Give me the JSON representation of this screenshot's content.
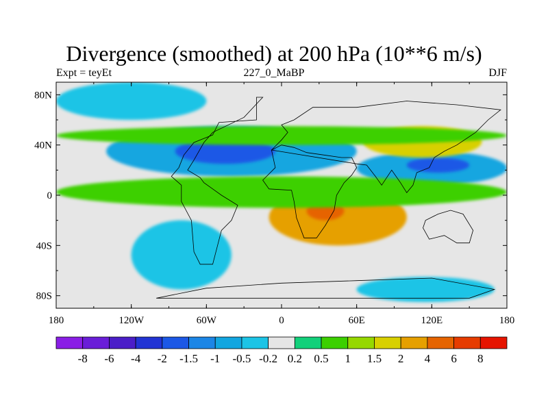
{
  "chart_data": {
    "type": "heatmap",
    "title": "Divergence (smoothed) at 200 hPa (10**6 m/s)",
    "subtitle_left": "Expt = teyEt",
    "subtitle_center": "227_0_MaBP",
    "subtitle_right": "DJF",
    "x_ticks": [
      "180",
      "120W",
      "60W",
      "0",
      "60E",
      "120E",
      "180"
    ],
    "x_tick_values": [
      -180,
      -120,
      -60,
      0,
      60,
      120,
      180
    ],
    "y_ticks": [
      "80N",
      "40N",
      "0",
      "40S",
      "80S"
    ],
    "y_tick_values": [
      80,
      40,
      0,
      -40,
      -80
    ],
    "xlim": [
      -180,
      180
    ],
    "ylim": [
      -90,
      90
    ],
    "colorbar": {
      "labels": [
        "-8",
        "-6",
        "-4",
        "-2",
        "-1.5",
        "-1",
        "-0.5",
        "-0.2",
        "0.2",
        "0.5",
        "1",
        "1.5",
        "2",
        "4",
        "6",
        "8"
      ],
      "colors": [
        "#8a1ee6",
        "#6a1ed8",
        "#4b1ec8",
        "#2234d4",
        "#1c58e6",
        "#1c86e6",
        "#12a6e0",
        "#1cc4e6",
        "#e6e6e6",
        "#12d07a",
        "#3cd000",
        "#96d800",
        "#d8d000",
        "#e6a000",
        "#e66400",
        "#e63c00",
        "#e61400"
      ]
    },
    "regions": [
      {
        "name": "global-background",
        "value": 0,
        "lon": [
          -180,
          180
        ],
        "lat": [
          -90,
          90
        ]
      },
      {
        "name": "north-pacific-convergence",
        "value": -0.5,
        "lon": [
          -180,
          -60
        ],
        "lat": [
          60,
          90
        ]
      },
      {
        "name": "nh-subtropic-convergence-belt",
        "value": -1,
        "lon": [
          -140,
          60
        ],
        "lat": [
          15,
          55
        ]
      },
      {
        "name": "atlantic-strong-convergence",
        "value": -2,
        "lon": [
          -85,
          -5
        ],
        "lat": [
          25,
          45
        ]
      },
      {
        "name": "asia-pacific-convergence",
        "value": -1,
        "lon": [
          60,
          180
        ],
        "lat": [
          8,
          35
        ]
      },
      {
        "name": "west-pacific-strong-convergence",
        "value": -2,
        "lon": [
          100,
          150
        ],
        "lat": [
          18,
          30
        ]
      },
      {
        "name": "tibet-divergence",
        "value": 1.5,
        "lon": [
          65,
          160
        ],
        "lat": [
          30,
          55
        ]
      },
      {
        "name": "africa-tropical-divergence",
        "value": 2,
        "lon": [
          -10,
          100
        ],
        "lat": [
          -40,
          5
        ]
      },
      {
        "name": "africa-core-divergence",
        "value": 4,
        "lon": [
          20,
          50
        ],
        "lat": [
          -20,
          -5
        ]
      },
      {
        "name": "sh-subtropic-convergence",
        "value": -0.5,
        "lon": [
          -120,
          -40
        ],
        "lat": [
          -75,
          -20
        ]
      },
      {
        "name": "southern-ocean-convergence",
        "value": -0.5,
        "lon": [
          60,
          170
        ],
        "lat": [
          -85,
          -65
        ]
      },
      {
        "name": "equatorial-divergence-band",
        "value": 0.5,
        "lon": [
          -180,
          180
        ],
        "lat": [
          -10,
          15
        ]
      },
      {
        "name": "nh-midlat-divergence",
        "value": 0.5,
        "lon": [
          -180,
          180
        ],
        "lat": [
          40,
          55
        ]
      }
    ]
  }
}
